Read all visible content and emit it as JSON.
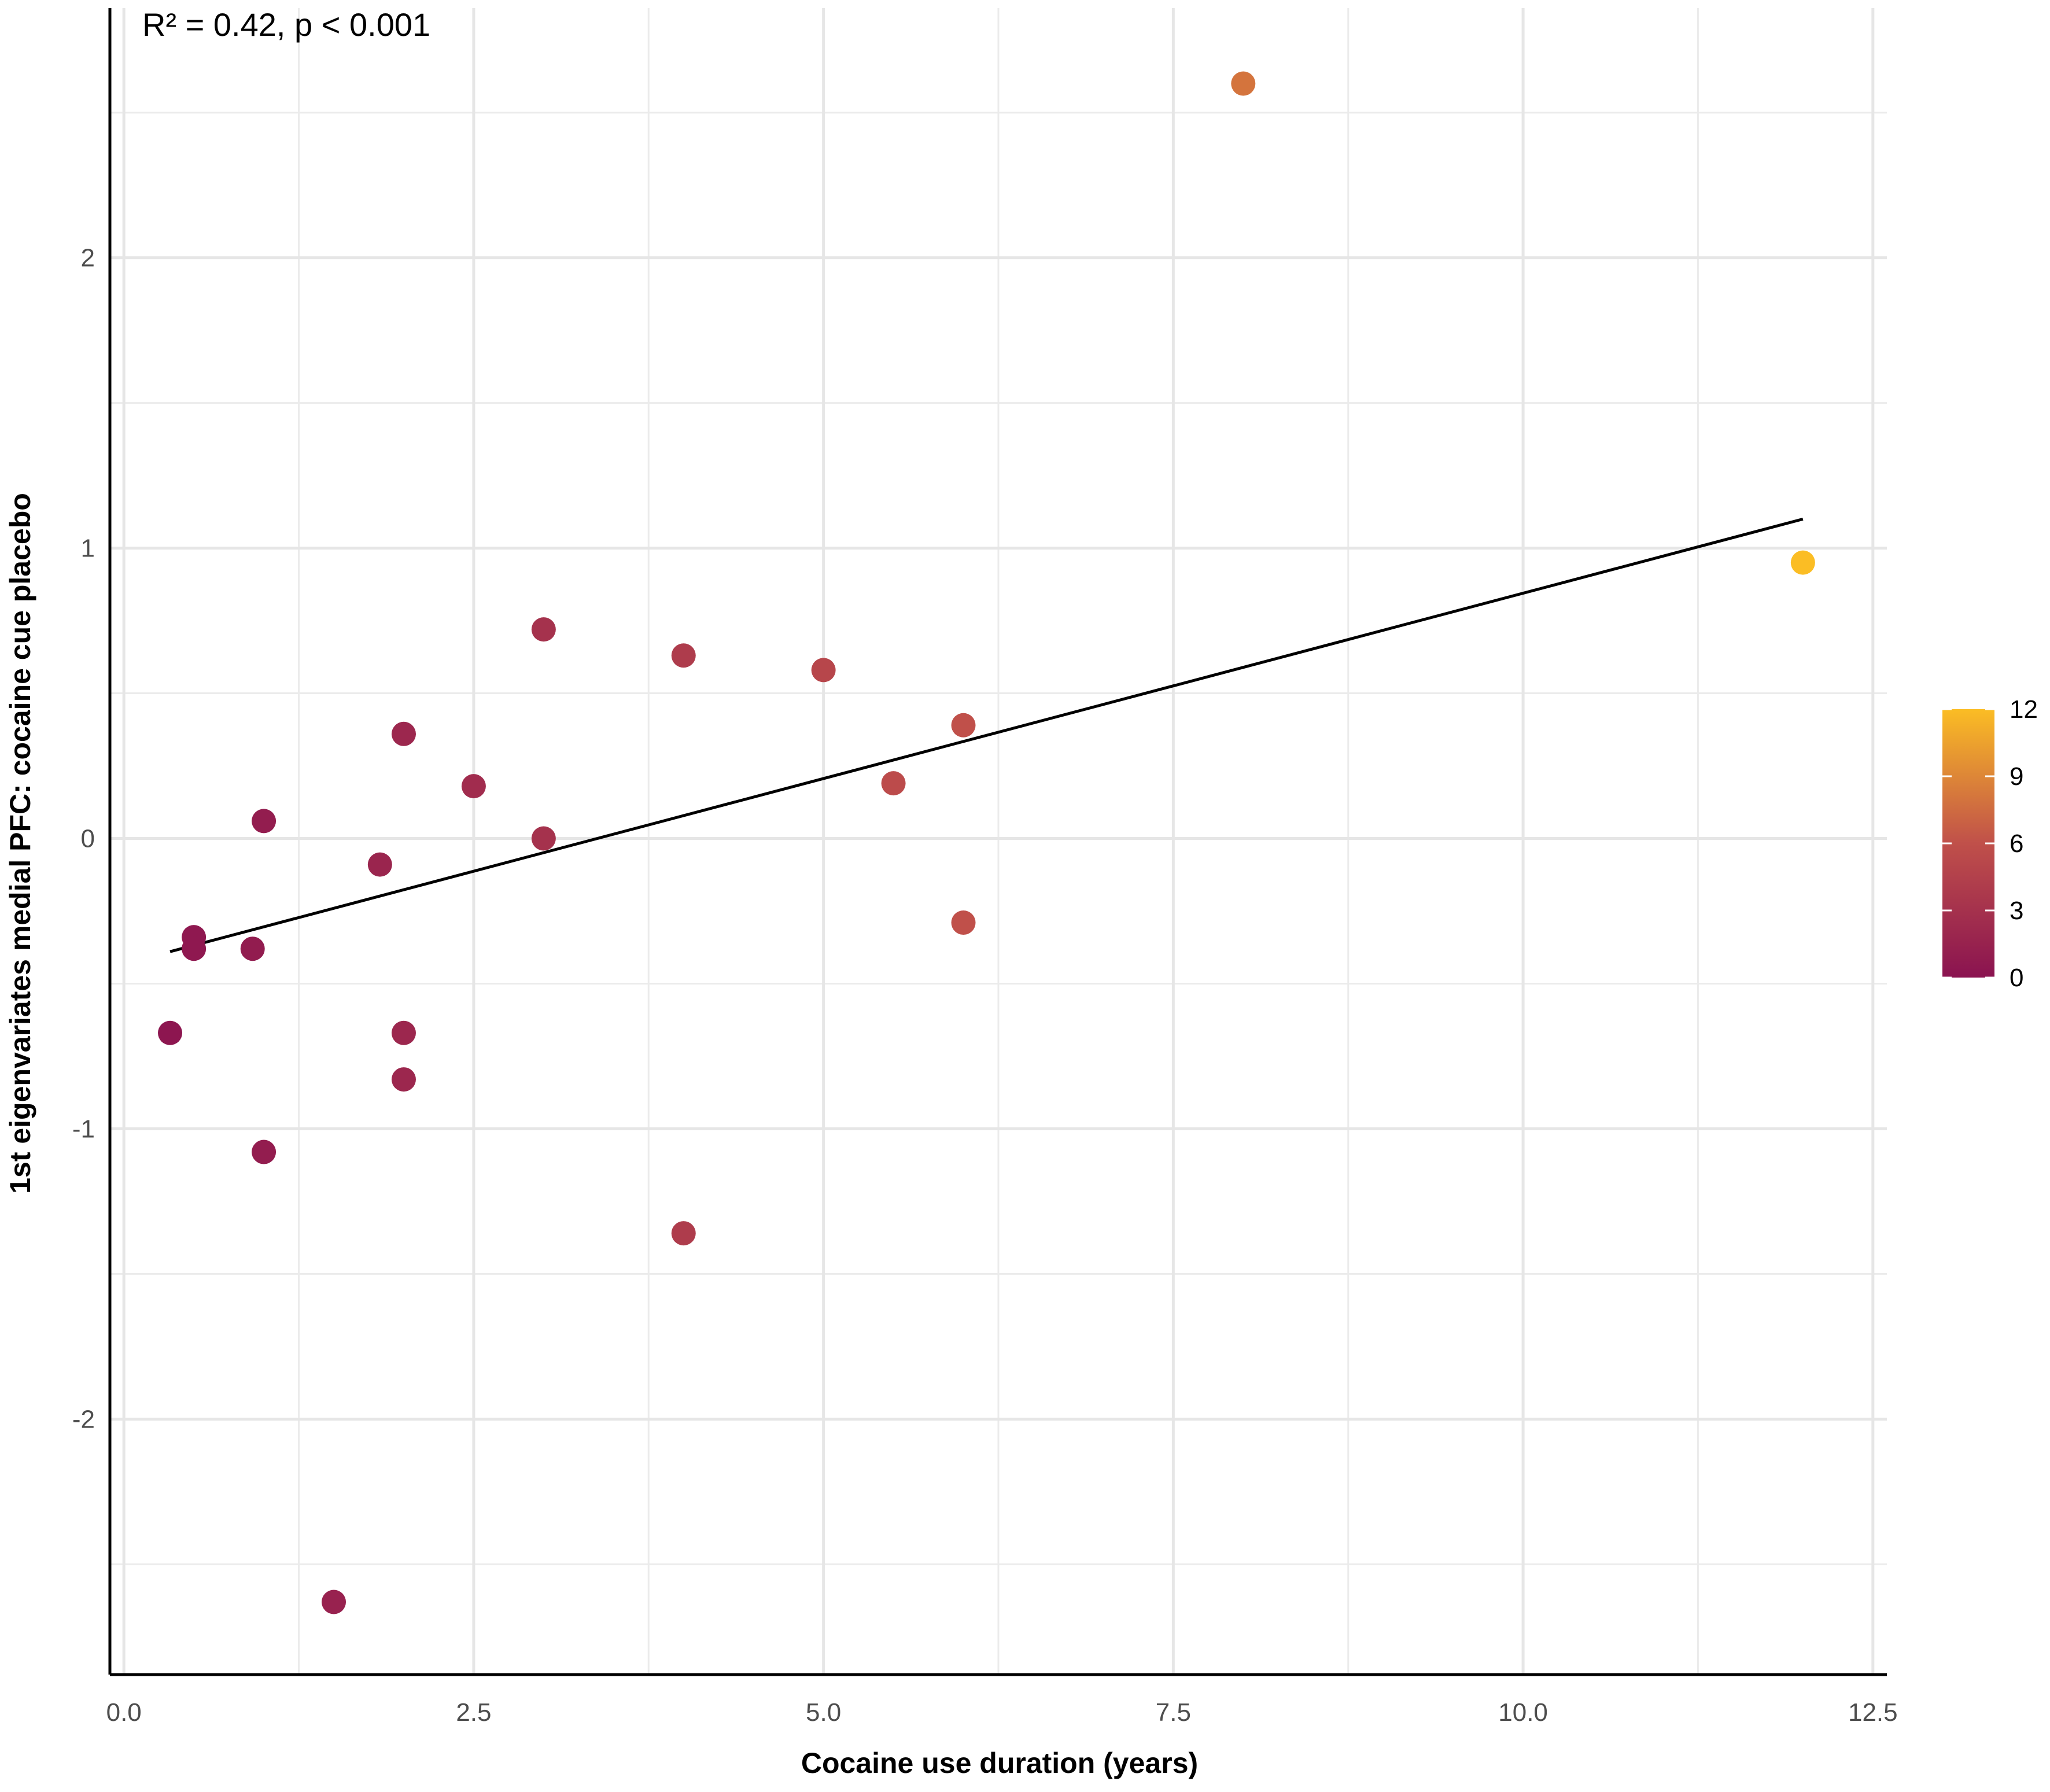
{
  "chart_data": {
    "type": "scatter",
    "xlabel": "Cocaine use duration (years)",
    "ylabel": "1st eigenvariates medial PFC: cocaine cue placebo",
    "annotation": "R² = 0.42, p < 0.001",
    "xlim": [
      -0.1,
      12.6
    ],
    "ylim": [
      -2.88,
      2.86
    ],
    "x_ticks": [
      0,
      2.5,
      5,
      7.5,
      10,
      12.5
    ],
    "x_tick_labels": [
      "0.0",
      "2.5",
      "5.0",
      "7.5",
      "10.0",
      "12.5"
    ],
    "y_ticks": [
      -2,
      -1,
      0,
      1,
      2
    ],
    "y_tick_labels": [
      "-2",
      "-1",
      "0",
      "1",
      "2"
    ],
    "grid": true,
    "points": [
      {
        "x": 8.0,
        "y": 2.6,
        "c": 8
      },
      {
        "x": 12.0,
        "y": 0.95,
        "c": 12
      },
      {
        "x": 3.0,
        "y": 0.72,
        "c": 3
      },
      {
        "x": 4.0,
        "y": 0.63,
        "c": 4
      },
      {
        "x": 5.0,
        "y": 0.58,
        "c": 5
      },
      {
        "x": 6.0,
        "y": 0.39,
        "c": 6
      },
      {
        "x": 2.0,
        "y": 0.36,
        "c": 2
      },
      {
        "x": 5.5,
        "y": 0.19,
        "c": 5.5
      },
      {
        "x": 2.5,
        "y": 0.18,
        "c": 2.5
      },
      {
        "x": 1.0,
        "y": 0.06,
        "c": 1
      },
      {
        "x": 3.0,
        "y": 0.0,
        "c": 3
      },
      {
        "x": 1.83,
        "y": -0.09,
        "c": 1.8
      },
      {
        "x": 6.0,
        "y": -0.29,
        "c": 6
      },
      {
        "x": 0.5,
        "y": -0.34,
        "c": 0.5
      },
      {
        "x": 0.5,
        "y": -0.38,
        "c": 0.5
      },
      {
        "x": 0.92,
        "y": -0.38,
        "c": 0.9
      },
      {
        "x": 0.33,
        "y": -0.67,
        "c": 0.3
      },
      {
        "x": 2.0,
        "y": -0.67,
        "c": 2
      },
      {
        "x": 2.0,
        "y": -0.83,
        "c": 2
      },
      {
        "x": 1.0,
        "y": -1.08,
        "c": 1
      },
      {
        "x": 4.0,
        "y": -1.36,
        "c": 4
      },
      {
        "x": 1.5,
        "y": -2.63,
        "c": 1.5
      }
    ],
    "fit_line": {
      "x": [
        0.33,
        12.0
      ],
      "y": [
        -0.39,
        1.1
      ]
    },
    "color_scale": {
      "min": 0,
      "max": 12,
      "ticks": [
        0,
        3,
        6,
        9,
        12
      ],
      "tick_labels": [
        "0",
        "3",
        "6",
        "9",
        "12"
      ],
      "low_color": "#8a1350",
      "mid_color": "#c0504a",
      "high_color": "#fbbd24"
    }
  }
}
